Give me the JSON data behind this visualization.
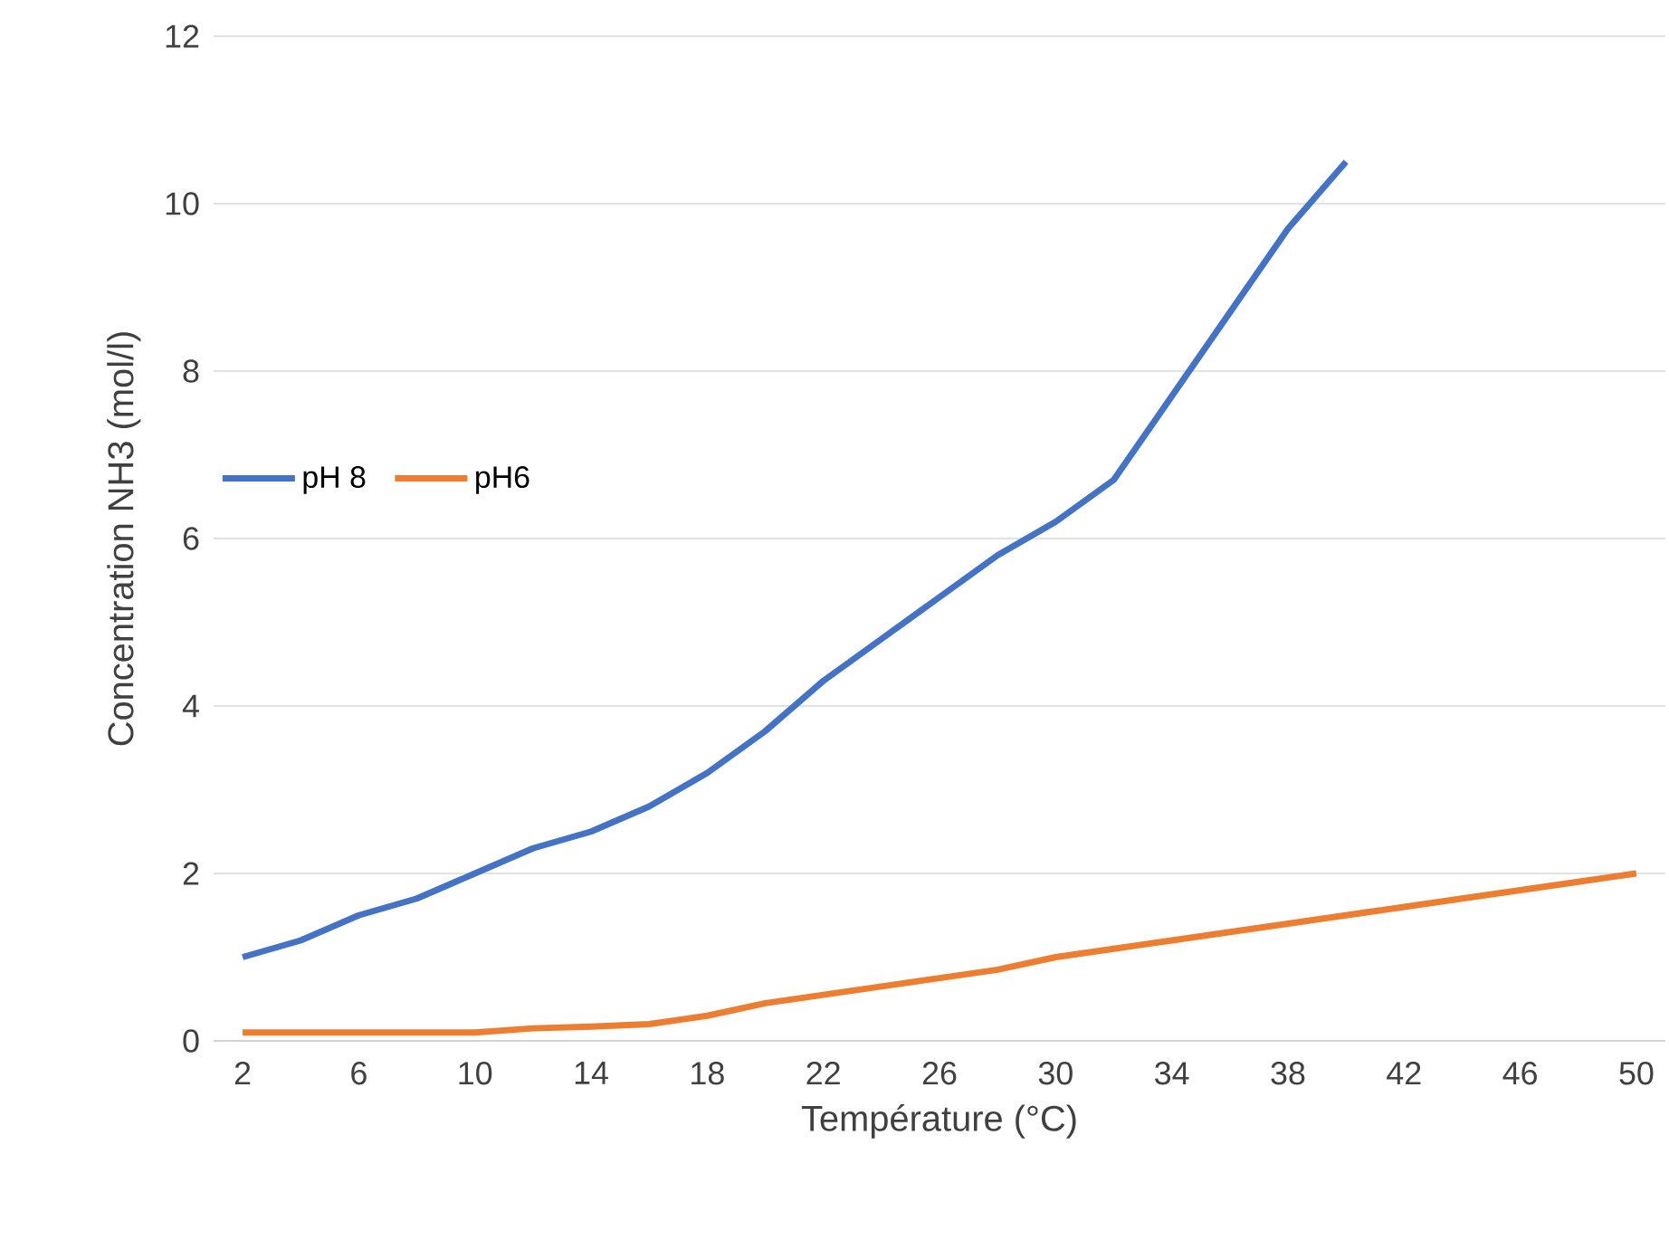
{
  "chart_data": {
    "type": "line",
    "xlabel": "Température (°C)",
    "ylabel": "Concentration NH3 (mol/l)",
    "xlim": [
      1,
      51
    ],
    "xticks": [
      2,
      6,
      10,
      14,
      18,
      22,
      26,
      30,
      34,
      38,
      42,
      46,
      50
    ],
    "ylim": [
      0,
      12
    ],
    "yticks": [
      0,
      2,
      4,
      6,
      8,
      10,
      12
    ],
    "grid": "y",
    "legend": "left",
    "marker": "none",
    "line_style": "solid",
    "series": [
      {
        "name": "pH 8",
        "color": "#4472c4",
        "x": [
          2,
          4,
          6,
          8,
          10,
          12,
          14,
          16,
          18,
          20,
          22,
          24,
          26,
          28,
          30,
          32,
          34,
          36,
          38,
          40
        ],
        "values": [
          1.0,
          1.2,
          1.5,
          1.7,
          2.0,
          2.3,
          2.5,
          2.8,
          3.2,
          3.7,
          4.3,
          4.8,
          5.3,
          5.8,
          6.2,
          6.7,
          7.7,
          8.7,
          9.7,
          10.5
        ]
      },
      {
        "name": "pH6",
        "color": "#ed7d31",
        "x": [
          2,
          4,
          6,
          8,
          10,
          12,
          14,
          16,
          18,
          20,
          22,
          24,
          26,
          28,
          30,
          32,
          34,
          36,
          38,
          40,
          42,
          44,
          46,
          48,
          50
        ],
        "values": [
          0.1,
          0.1,
          0.1,
          0.1,
          0.1,
          0.15,
          0.17,
          0.2,
          0.3,
          0.45,
          0.55,
          0.65,
          0.75,
          0.85,
          1.0,
          1.1,
          1.2,
          1.3,
          1.4,
          1.5,
          1.6,
          1.7,
          1.8,
          1.9,
          2.0
        ]
      }
    ]
  }
}
